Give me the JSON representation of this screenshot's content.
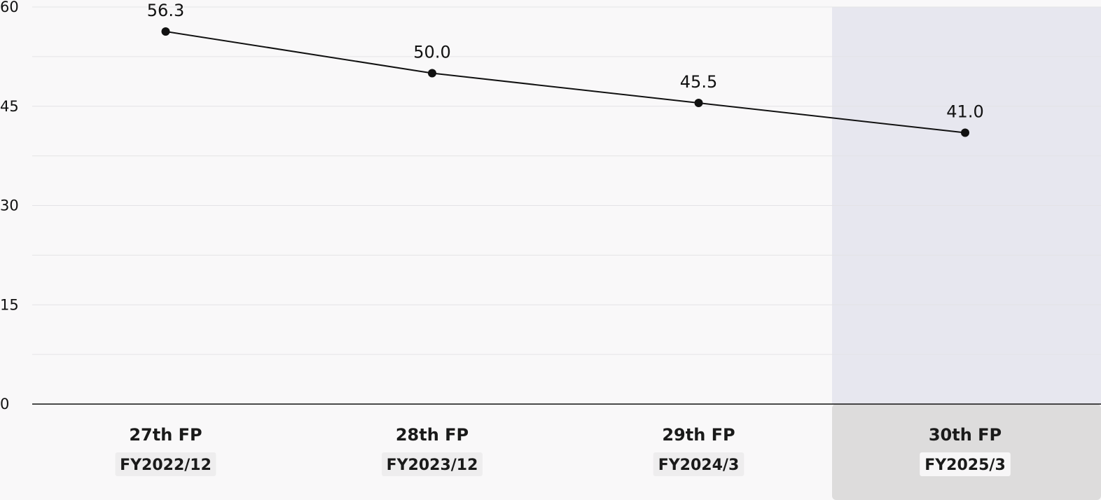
{
  "chart_data": {
    "type": "line",
    "title": "",
    "xlabel": "",
    "ylabel": "",
    "ylim": [
      0,
      60
    ],
    "yticks": [
      0,
      15,
      30,
      45,
      60
    ],
    "grid": true,
    "categories": [
      {
        "period": "27th FP",
        "fiscal_year": "FY2022/12"
      },
      {
        "period": "28th FP",
        "fiscal_year": "FY2023/12"
      },
      {
        "period": "29th FP",
        "fiscal_year": "FY2024/3"
      },
      {
        "period": "30th FP",
        "fiscal_year": "FY2025/3"
      }
    ],
    "series": [
      {
        "values": [
          56.3,
          50.0,
          45.5,
          41.0
        ],
        "labels": [
          "56.3",
          "50.0",
          "45.5",
          "41.0"
        ]
      }
    ],
    "highlighted_category_index": 3
  },
  "colors": {
    "background": "#f9f8f9",
    "highlight_plot": "#e7e7ef",
    "highlight_axis": "#dddcdc",
    "label_box": "#eeedee",
    "highlight_label_box": "#f7f6f7",
    "grid": "#e4e3e6",
    "line": "#111111"
  }
}
